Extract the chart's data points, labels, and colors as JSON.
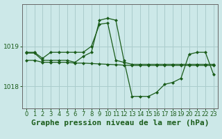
{
  "background_color": "#cce8e8",
  "grid_color": "#aacccc",
  "line_color": "#1a5c1a",
  "marker_color": "#1a5c1a",
  "title": "Graphe pression niveau de la mer (hPa)",
  "xlim": [
    -0.5,
    23.5
  ],
  "ylim": [
    1017.45,
    1020.05
  ],
  "yticks": [
    1018,
    1019
  ],
  "xticks": [
    0,
    1,
    2,
    3,
    4,
    5,
    6,
    7,
    8,
    9,
    10,
    11,
    12,
    13,
    14,
    15,
    16,
    17,
    18,
    19,
    20,
    21,
    22,
    23
  ],
  "series": [
    {
      "x": [
        0,
        1,
        2,
        3,
        4,
        5,
        6,
        7,
        8,
        9,
        10,
        11,
        12,
        13,
        14,
        15,
        16,
        17,
        18,
        19,
        20,
        21,
        22,
        23
      ],
      "y": [
        1018.65,
        1018.65,
        1018.6,
        1018.6,
        1018.6,
        1018.6,
        1018.58,
        1018.58,
        1018.57,
        1018.56,
        1018.55,
        1018.54,
        1018.53,
        1018.52,
        1018.52,
        1018.52,
        1018.52,
        1018.52,
        1018.52,
        1018.52,
        1018.52,
        1018.52,
        1018.52,
        1018.52
      ]
    },
    {
      "x": [
        0,
        1,
        2,
        3,
        4,
        5,
        6,
        7,
        8,
        9,
        10,
        11,
        12,
        13,
        14,
        15,
        16,
        17,
        18,
        19,
        20,
        21,
        22,
        23
      ],
      "y": [
        1018.83,
        1018.83,
        1018.65,
        1018.65,
        1018.65,
        1018.65,
        1018.6,
        1018.75,
        1018.85,
        1019.65,
        1019.7,
        1019.65,
        1018.65,
        1017.75,
        1017.75,
        1017.75,
        1017.85,
        1018.05,
        1018.1,
        1018.2,
        1018.8,
        1018.85,
        1018.85,
        1018.3
      ]
    },
    {
      "x": [
        0,
        1,
        2,
        3,
        4,
        5,
        6,
        7,
        8,
        9,
        10,
        11,
        12,
        13,
        14,
        15,
        16,
        17,
        18,
        19,
        20,
        21,
        22,
        23
      ],
      "y": [
        1018.85,
        1018.85,
        1018.7,
        1018.85,
        1018.85,
        1018.85,
        1018.85,
        1018.85,
        1019.0,
        1019.55,
        1019.58,
        1018.65,
        1018.6,
        1018.55,
        1018.55,
        1018.55,
        1018.55,
        1018.55,
        1018.55,
        1018.55,
        1018.55,
        1018.55,
        1018.55,
        1018.55
      ]
    }
  ],
  "title_fontsize": 8,
  "tick_fontsize": 6,
  "title_color": "#1a5c1a",
  "tick_color": "#1a5c1a",
  "axis_color": "#666666",
  "markersize": 2.0,
  "linewidth": 0.9
}
